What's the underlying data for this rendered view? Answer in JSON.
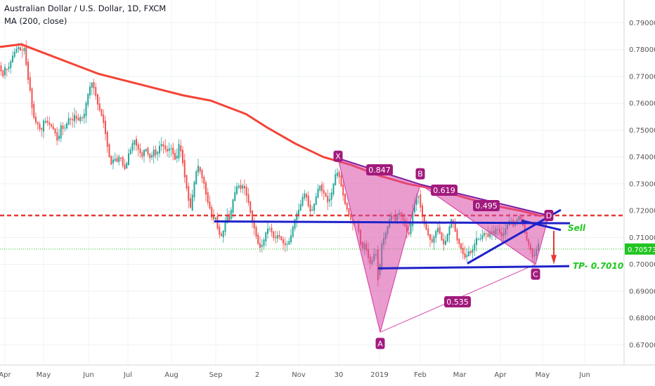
{
  "header": {
    "symbol": "Australian Dollar / U.S. Dollar, 1D, FXCM",
    "indicator": "MA (200, close)"
  },
  "colors": {
    "up": "#26a69a",
    "down": "#ef5350",
    "ma": "#f44336",
    "pattern_fill": "#d84aa8",
    "pattern_line": "#7b1fa2",
    "trend_line": "#1e22c9",
    "label_bg": "#a21a7d",
    "green_text": "#1ec81e",
    "current_price": "#21c521"
  },
  "chart_data": {
    "type": "candlestick",
    "symbol": "Australian Dollar / U.S. Dollar, 1D, FXCM",
    "ylim": [
      0.6625,
      0.7985
    ],
    "y_ticks": [
      "0.79000",
      "0.78000",
      "0.77000",
      "0.76000",
      "0.75000",
      "0.74000",
      "0.73000",
      "0.72000",
      "0.71000",
      "0.70000",
      "0.69000",
      "0.68000",
      "0.67000"
    ],
    "x_ticks": [
      "Apr",
      "May",
      "Jun",
      "Jul",
      "Aug",
      "Sep",
      "2",
      "Nov",
      "30",
      "2019",
      "Feb",
      "Mar",
      "Apr",
      "May",
      "Jun"
    ],
    "current_price_label": "0.70573",
    "current_price": 0.7057,
    "price_path": [
      [
        0,
        0.774
      ],
      [
        3,
        0.772
      ],
      [
        6,
        0.77
      ],
      [
        9,
        0.774
      ],
      [
        12,
        0.772
      ],
      [
        16,
        0.775
      ],
      [
        20,
        0.778
      ],
      [
        24,
        0.78
      ],
      [
        28,
        0.781
      ],
      [
        32,
        0.779
      ],
      [
        36,
        0.781
      ],
      [
        39,
        0.774
      ],
      [
        42,
        0.768
      ],
      [
        45,
        0.764
      ],
      [
        48,
        0.756
      ],
      [
        52,
        0.753
      ],
      [
        56,
        0.752
      ],
      [
        60,
        0.749
      ],
      [
        64,
        0.754
      ],
      [
        68,
        0.753
      ],
      [
        72,
        0.752
      ],
      [
        76,
        0.751
      ],
      [
        80,
        0.749
      ],
      [
        84,
        0.745
      ],
      [
        88,
        0.752
      ],
      [
        92,
        0.75
      ],
      [
        96,
        0.752
      ],
      [
        100,
        0.755
      ],
      [
        104,
        0.753
      ],
      [
        108,
        0.756
      ],
      [
        112,
        0.753
      ],
      [
        116,
        0.755
      ],
      [
        120,
        0.754
      ],
      [
        124,
        0.76
      ],
      [
        128,
        0.765
      ],
      [
        132,
        0.768
      ],
      [
        136,
        0.765
      ],
      [
        140,
        0.76
      ],
      [
        144,
        0.757
      ],
      [
        148,
        0.754
      ],
      [
        152,
        0.748
      ],
      [
        156,
        0.741
      ],
      [
        160,
        0.737
      ],
      [
        164,
        0.74
      ],
      [
        168,
        0.738
      ],
      [
        172,
        0.741
      ],
      [
        176,
        0.737
      ],
      [
        180,
        0.735
      ],
      [
        184,
        0.741
      ],
      [
        188,
        0.743
      ],
      [
        192,
        0.747
      ],
      [
        196,
        0.744
      ],
      [
        200,
        0.742
      ],
      [
        204,
        0.74
      ],
      [
        208,
        0.744
      ],
      [
        212,
        0.741
      ],
      [
        216,
        0.739
      ],
      [
        220,
        0.743
      ],
      [
        224,
        0.74
      ],
      [
        228,
        0.744
      ],
      [
        232,
        0.745
      ],
      [
        236,
        0.743
      ],
      [
        240,
        0.742
      ],
      [
        244,
        0.744
      ],
      [
        248,
        0.741
      ],
      [
        252,
        0.738
      ],
      [
        256,
        0.745
      ],
      [
        260,
        0.741
      ],
      [
        264,
        0.733
      ],
      [
        268,
        0.727
      ],
      [
        272,
        0.72
      ],
      [
        276,
        0.727
      ],
      [
        280,
        0.734
      ],
      [
        284,
        0.737
      ],
      [
        288,
        0.733
      ],
      [
        292,
        0.73
      ],
      [
        296,
        0.724
      ],
      [
        300,
        0.721
      ],
      [
        304,
        0.716
      ],
      [
        308,
        0.718
      ],
      [
        312,
        0.712
      ],
      [
        316,
        0.71
      ],
      [
        320,
        0.713
      ],
      [
        324,
        0.719
      ],
      [
        328,
        0.716
      ],
      [
        332,
        0.723
      ],
      [
        336,
        0.727
      ],
      [
        340,
        0.73
      ],
      [
        344,
        0.728
      ],
      [
        348,
        0.73
      ],
      [
        352,
        0.726
      ],
      [
        356,
        0.722
      ],
      [
        360,
        0.716
      ],
      [
        364,
        0.713
      ],
      [
        368,
        0.708
      ],
      [
        372,
        0.706
      ],
      [
        376,
        0.708
      ],
      [
        380,
        0.712
      ],
      [
        384,
        0.714
      ],
      [
        388,
        0.712
      ],
      [
        392,
        0.709
      ],
      [
        396,
        0.711
      ],
      [
        400,
        0.71
      ],
      [
        404,
        0.708
      ],
      [
        408,
        0.707
      ],
      [
        412,
        0.708
      ],
      [
        416,
        0.711
      ],
      [
        420,
        0.716
      ],
      [
        424,
        0.719
      ],
      [
        428,
        0.721
      ],
      [
        432,
        0.725
      ],
      [
        436,
        0.727
      ],
      [
        440,
        0.722
      ],
      [
        444,
        0.719
      ],
      [
        448,
        0.722
      ],
      [
        452,
        0.726
      ],
      [
        456,
        0.73
      ],
      [
        460,
        0.727
      ],
      [
        464,
        0.726
      ],
      [
        468,
        0.723
      ],
      [
        472,
        0.725
      ],
      [
        476,
        0.73
      ],
      [
        480,
        0.735
      ],
      [
        484,
        0.733
      ],
      [
        488,
        0.728
      ],
      [
        492,
        0.723
      ],
      [
        496,
        0.72
      ],
      [
        500,
        0.717
      ],
      [
        504,
        0.715
      ],
      [
        508,
        0.717
      ],
      [
        512,
        0.712
      ],
      [
        516,
        0.705
      ],
      [
        520,
        0.708
      ],
      [
        524,
        0.704
      ],
      [
        528,
        0.7
      ],
      [
        532,
        0.702
      ],
      [
        536,
        0.706
      ],
      [
        540,
        0.692
      ],
      [
        544,
        0.707
      ],
      [
        548,
        0.71
      ],
      [
        552,
        0.713
      ],
      [
        556,
        0.717
      ],
      [
        560,
        0.719
      ],
      [
        564,
        0.716
      ],
      [
        568,
        0.72
      ],
      [
        572,
        0.718
      ],
      [
        576,
        0.716
      ],
      [
        580,
        0.712
      ],
      [
        584,
        0.711
      ],
      [
        588,
        0.719
      ],
      [
        592,
        0.723
      ],
      [
        596,
        0.727
      ],
      [
        600,
        0.721
      ],
      [
        604,
        0.716
      ],
      [
        608,
        0.713
      ],
      [
        612,
        0.71
      ],
      [
        616,
        0.708
      ],
      [
        620,
        0.711
      ],
      [
        624,
        0.714
      ],
      [
        628,
        0.711
      ],
      [
        632,
        0.707
      ],
      [
        636,
        0.709
      ],
      [
        640,
        0.713
      ],
      [
        644,
        0.717
      ],
      [
        648,
        0.714
      ],
      [
        652,
        0.709
      ],
      [
        656,
        0.707
      ],
      [
        660,
        0.704
      ],
      [
        664,
        0.702
      ],
      [
        668,
        0.705
      ],
      [
        672,
        0.704
      ],
      [
        676,
        0.707
      ],
      [
        680,
        0.71
      ],
      [
        684,
        0.709
      ],
      [
        688,
        0.711
      ],
      [
        692,
        0.712
      ],
      [
        696,
        0.71
      ],
      [
        700,
        0.713
      ],
      [
        704,
        0.711
      ],
      [
        708,
        0.714
      ],
      [
        712,
        0.712
      ],
      [
        716,
        0.71
      ],
      [
        720,
        0.713
      ],
      [
        724,
        0.715
      ],
      [
        728,
        0.717
      ],
      [
        732,
        0.714
      ],
      [
        736,
        0.716
      ],
      [
        740,
        0.718
      ],
      [
        744,
        0.716
      ],
      [
        748,
        0.712
      ],
      [
        752,
        0.708
      ],
      [
        756,
        0.706
      ],
      [
        760,
        0.702
      ],
      [
        764,
        0.705
      ],
      [
        768,
        0.708
      ]
    ],
    "ma200_path": [
      [
        0,
        0.781
      ],
      [
        30,
        0.782
      ],
      [
        40,
        0.781
      ],
      [
        60,
        0.779
      ],
      [
        100,
        0.775
      ],
      [
        140,
        0.771
      ],
      [
        200,
        0.767
      ],
      [
        260,
        0.763
      ],
      [
        300,
        0.761
      ],
      [
        350,
        0.756
      ],
      [
        380,
        0.751
      ],
      [
        420,
        0.745
      ],
      [
        460,
        0.74
      ],
      [
        500,
        0.737
      ],
      [
        540,
        0.733
      ],
      [
        580,
        0.73
      ],
      [
        620,
        0.728
      ],
      [
        660,
        0.725
      ],
      [
        700,
        0.722
      ],
      [
        740,
        0.72
      ],
      [
        770,
        0.718
      ]
    ],
    "harmonic_pattern": {
      "points": [
        {
          "label": "X",
          "price": 0.7395
        },
        {
          "label": "A",
          "price": 0.6747
        },
        {
          "label": "B",
          "price": 0.7298
        },
        {
          "label": "C",
          "price": 0.7
        },
        {
          "label": "D",
          "price": 0.7182
        }
      ],
      "ratios": [
        "0.847",
        "0.619",
        "0.495",
        "0.535"
      ]
    },
    "annotations": {
      "sell_label": "Sell",
      "tp_label": "TP- 0.7010",
      "resistance_level": 0.7182
    }
  }
}
